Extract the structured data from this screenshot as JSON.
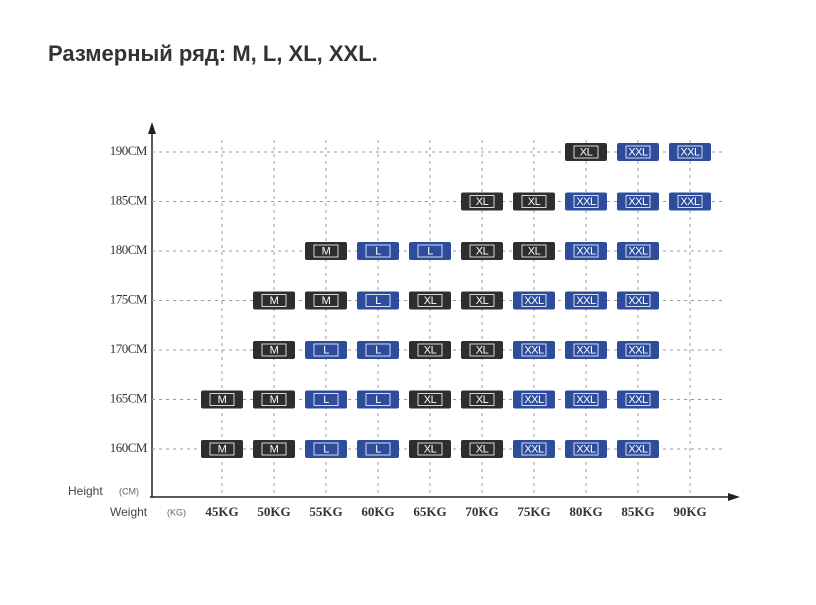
{
  "header": {
    "title": "Размерный ряд: M, L, XL, XXL."
  },
  "grid": {
    "height_label": "Height",
    "height_unit": "(CM)",
    "weight_label": "Weight",
    "weight_unit": "(KG)",
    "columns": [
      "45KG",
      "50KG",
      "55KG",
      "60KG",
      "65KG",
      "70KG",
      "75KG",
      "80KG",
      "85KG",
      "90KG"
    ],
    "size_colors": {
      "M": "#2e2e2e",
      "L": "#2d4c9c",
      "XL": "#2e2e2e",
      "XXL": "#2d4c9c"
    },
    "rows": [
      {
        "label": "190CM",
        "cells": [
          null,
          null,
          null,
          null,
          null,
          null,
          null,
          "XL",
          "XXL",
          "XXL"
        ]
      },
      {
        "label": "185CM",
        "cells": [
          null,
          null,
          null,
          null,
          null,
          "XL",
          "XL",
          "XXL",
          "XXL",
          "XXL"
        ]
      },
      {
        "label": "180CM",
        "cells": [
          null,
          null,
          "M",
          "L",
          "L",
          "XL",
          "XL",
          "XXL",
          "XXL",
          null
        ]
      },
      {
        "label": "175CM",
        "cells": [
          null,
          "M",
          "M",
          "L",
          "XL",
          "XL",
          "XXL",
          "XXL",
          "XXL",
          null
        ]
      },
      {
        "label": "170CM",
        "cells": [
          null,
          "M",
          "L",
          "L",
          "XL",
          "XL",
          "XXL",
          "XXL",
          "XXL",
          null
        ]
      },
      {
        "label": "165CM",
        "cells": [
          "M",
          "M",
          "L",
          "L",
          "XL",
          "XL",
          "XXL",
          "XXL",
          "XXL",
          null
        ]
      },
      {
        "label": "160CM",
        "cells": [
          "M",
          "M",
          "L",
          "L",
          "XL",
          "XL",
          "XXL",
          "XXL",
          "XXL",
          null
        ]
      }
    ]
  }
}
